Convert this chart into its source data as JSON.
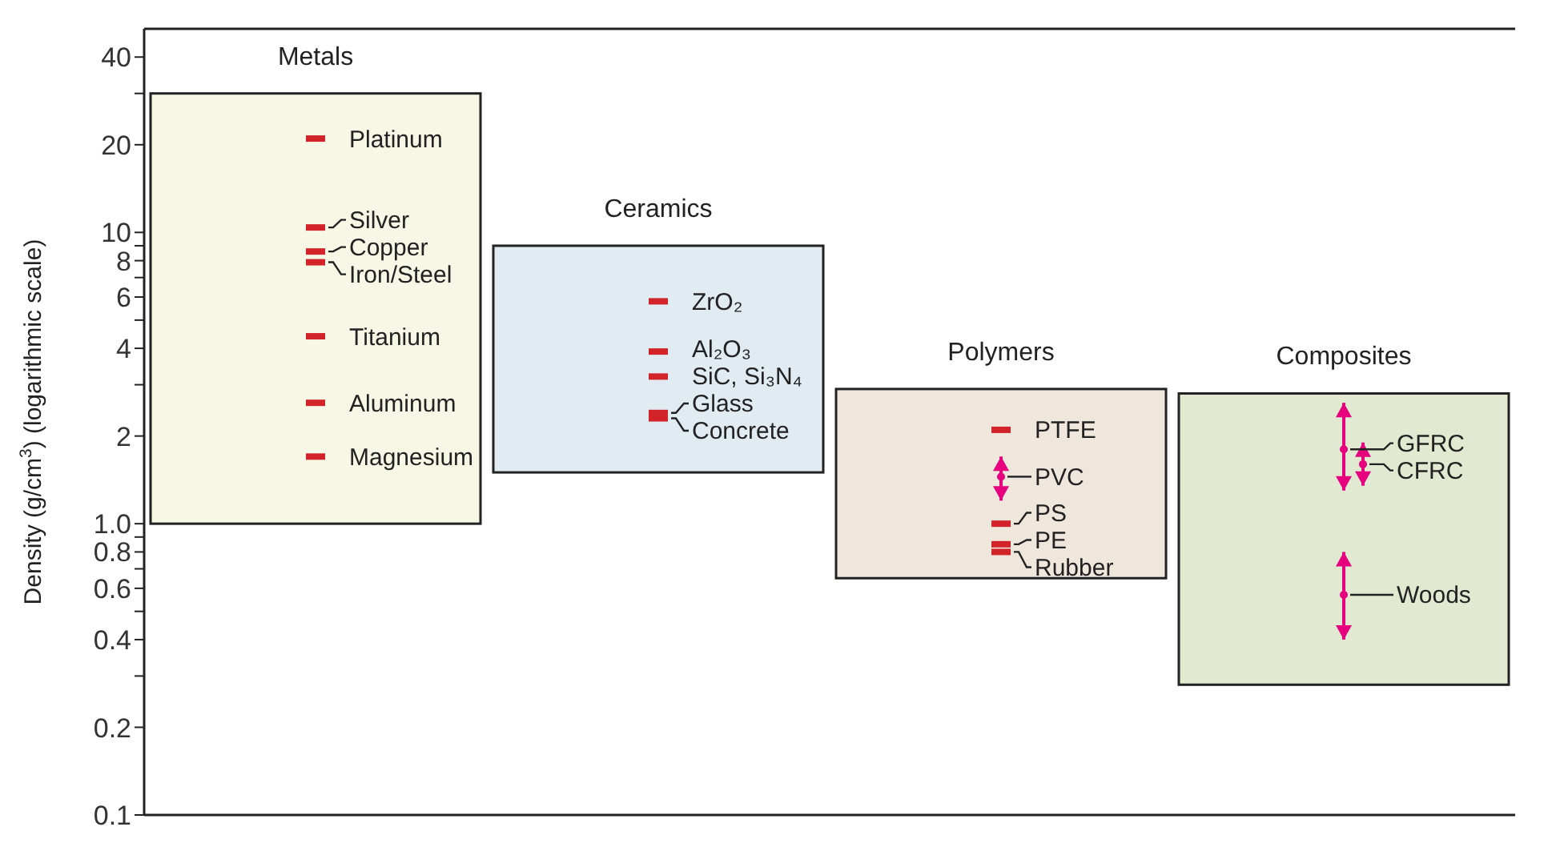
{
  "chart_data": {
    "type": "bar",
    "ylabel": "Density (g/cm$^{3}$) (logarithmic scale)",
    "log": true,
    "tick_labels": "y",
    "categories": [
      "Metals",
      "Ceramics",
      "Polymers",
      "Composites"
    ],
    "ylim": [
      0.1,
      50
    ],
    "yticks": [
      0.1,
      0.2,
      {
        "value": 0.3,
        "label": null
      },
      0.4,
      {
        "value": 0.5,
        "label": null
      },
      0.6,
      {
        "value": 0.7,
        "label": null
      },
      0.8,
      {
        "value": 0.9,
        "label": null
      },
      {
        "value": 1,
        "label": "1.0"
      },
      2,
      {
        "value": 3,
        "label": null
      },
      4,
      {
        "value": 5,
        "label": null
      },
      6,
      {
        "value": 7,
        "label": null
      },
      8,
      {
        "value": 9,
        "label": null
      },
      10,
      20,
      {
        "value": 30,
        "label": null
      },
      40
    ],
    "series": [
      {
        "base": [
          1,
          1.5,
          0.65,
          0.28
        ],
        "values": [
          29,
          7.5,
          2.25,
          2.52
        ],
        "colors": [
          "#f7f7e6",
          "#e1ebf2",
          "#efe6dc",
          "#e2e9d1"
        ]
      },
      {
        "type": "scatter",
        "color": "#d2232a",
        "x": [
          "Metals",
          "Metals",
          "Metals",
          "Metals",
          "Metals",
          "Metals",
          "Metals",
          "Ceramics",
          "Ceramics",
          "Ceramics",
          "Ceramics",
          "Ceramics",
          "Polymers",
          "Polymers",
          "Polymers",
          "Polymers"
        ],
        "values": [
          21,
          10.4,
          8.6,
          7.9,
          4.4,
          2.6,
          1.7,
          5.8,
          3.9,
          3.2,
          2.4,
          2.3,
          2.1,
          1.0,
          0.85,
          0.8
        ]
      },
      {
        "type": "scatter",
        "marker": "circle",
        "color": "#e6007e",
        "x": [
          "Polymers",
          "Composites",
          "Composites",
          "Composites"
        ],
        "values": [
          1.45,
          1.8,
          1.6,
          0.57
        ],
        "errors": [
          [
            1.2,
            1.7
          ],
          [
            1.3,
            2.6
          ],
          [
            1.35,
            1.9
          ],
          [
            0.4,
            0.8
          ]
        ]
      }
    ],
    "annotations": [
      {
        "text": "Platinum",
        "x": "Metals",
        "y": 21
      },
      {
        "text": "Silver",
        "x": "Metals",
        "y": 10.4
      },
      {
        "text": "Copper",
        "x": "Metals",
        "y": 8.6
      },
      {
        "text": "Iron/Steel",
        "x": "Metals",
        "y": 7.9
      },
      {
        "text": "Titanium",
        "x": "Metals",
        "y": 4.4
      },
      {
        "text": "Aluminum",
        "x": "Metals",
        "y": 2.6
      },
      {
        "text": "Magnesium",
        "x": "Metals",
        "y": 1.7
      },
      {
        "text": "ZrO₂",
        "x": "Ceramics",
        "y": 5.8
      },
      {
        "text": "Al₂O₃",
        "x": "Ceramics",
        "y": 3.9
      },
      {
        "text": "SiC, Si₃N₄",
        "x": "Ceramics",
        "y": 3.2
      },
      {
        "text": "Glass",
        "x": "Ceramics",
        "y": 2.4
      },
      {
        "text": "Concrete",
        "x": "Ceramics",
        "y": 2.3
      },
      {
        "text": "PTFE",
        "x": "Polymers",
        "y": 2.1
      },
      {
        "text": "PVC",
        "x": "Polymers",
        "y": 1.45
      },
      {
        "text": "PS",
        "x": "Polymers",
        "y": 1.0
      },
      {
        "text": "PE",
        "x": "Polymers",
        "y": 0.85
      },
      {
        "text": "Rubber",
        "x": "Polymers",
        "y": 0.8
      },
      {
        "text": "GFRC",
        "x": "Composites",
        "y": 1.8
      },
      {
        "text": "CFRC",
        "x": "Composites",
        "y": 1.6
      },
      {
        "text": "Woods",
        "x": "Composites",
        "y": 0.57
      }
    ]
  }
}
